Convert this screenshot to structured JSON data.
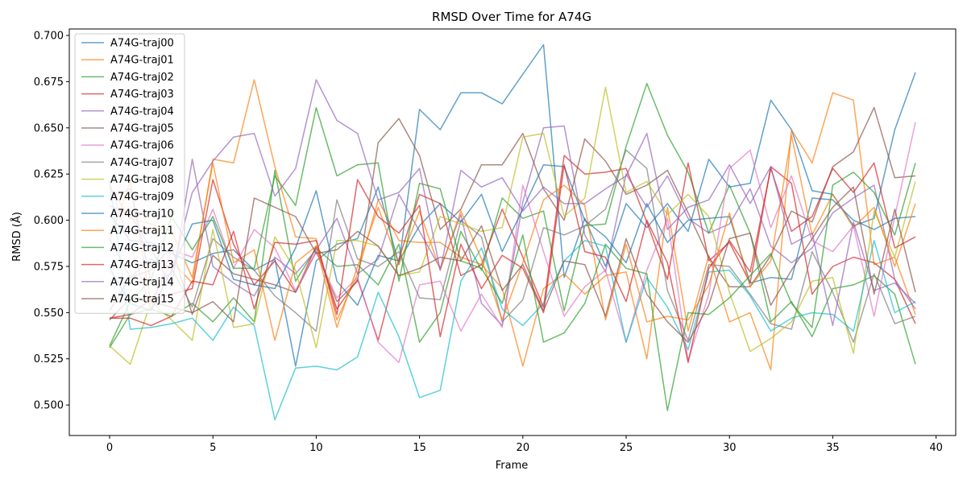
{
  "chart_data": {
    "type": "line",
    "title": "RMSD Over Time for A74G",
    "xlabel": "Frame",
    "ylabel": "RMSD (Å)",
    "xlim": [
      -1.95,
      40.95
    ],
    "ylim": [
      0.4835,
      0.7035
    ],
    "xticks": [
      0,
      5,
      10,
      15,
      20,
      25,
      30,
      35,
      40
    ],
    "yticks": [
      0.5,
      0.525,
      0.55,
      0.575,
      0.6,
      0.625,
      0.65,
      0.675,
      0.7
    ],
    "xtick_labels": [
      "0",
      "5",
      "10",
      "15",
      "20",
      "25",
      "30",
      "35",
      "40"
    ],
    "ytick_labels": [
      "0.500",
      "0.525",
      "0.550",
      "0.575",
      "0.600",
      "0.625",
      "0.650",
      "0.675",
      "0.700"
    ],
    "legend_position": "upper-left",
    "grid": false,
    "x": [
      0,
      1,
      2,
      3,
      4,
      5,
      6,
      7,
      8,
      9,
      10,
      11,
      12,
      13,
      14,
      15,
      16,
      17,
      18,
      19,
      20,
      21,
      22,
      23,
      24,
      25,
      26,
      27,
      28,
      29,
      30,
      31,
      32,
      33,
      34,
      35,
      36,
      37,
      38,
      39
    ],
    "series": [
      {
        "name": "A74G-traj00",
        "color": "#1f77b4",
        "values": [
          0.603,
          0.589,
          0.588,
          0.582,
          0.577,
          0.582,
          0.584,
          0.573,
          0.579,
          0.521,
          0.578,
          0.587,
          0.59,
          0.618,
          0.576,
          0.66,
          0.649,
          0.669,
          0.669,
          0.663,
          0.679,
          0.695,
          0.569,
          0.601,
          0.575,
          0.609,
          0.596,
          0.609,
          0.594,
          0.633,
          0.618,
          0.62,
          0.665,
          0.649,
          0.616,
          0.614,
          0.597,
          0.601,
          0.649,
          0.68
        ]
      },
      {
        "name": "A74G-traj01",
        "color": "#ff7f0e",
        "values": [
          0.589,
          0.621,
          0.555,
          0.578,
          0.566,
          0.633,
          0.631,
          0.676,
          0.629,
          0.591,
          0.59,
          0.546,
          0.571,
          0.611,
          0.589,
          0.588,
          0.588,
          0.58,
          0.576,
          0.563,
          0.521,
          0.563,
          0.571,
          0.56,
          0.57,
          0.572,
          0.525,
          0.607,
          0.54,
          0.581,
          0.545,
          0.55,
          0.519,
          0.649,
          0.631,
          0.669,
          0.665,
          0.576,
          0.58,
          0.549
        ]
      },
      {
        "name": "A74G-traj02",
        "color": "#2ca02c",
        "values": [
          0.531,
          0.549,
          0.552,
          0.548,
          0.555,
          0.545,
          0.558,
          0.545,
          0.627,
          0.567,
          0.585,
          0.575,
          0.576,
          0.565,
          0.587,
          0.534,
          0.55,
          0.594,
          0.573,
          0.612,
          0.601,
          0.605,
          0.551,
          0.597,
          0.598,
          0.64,
          0.674,
          0.646,
          0.626,
          0.593,
          0.619,
          0.593,
          0.545,
          0.556,
          0.537,
          0.563,
          0.565,
          0.57,
          0.56,
          0.522
        ]
      },
      {
        "name": "A74G-traj03",
        "color": "#d62728",
        "values": [
          0.547,
          0.549,
          0.557,
          0.56,
          0.563,
          0.622,
          0.587,
          0.565,
          0.578,
          0.561,
          0.586,
          0.552,
          0.568,
          0.535,
          0.579,
          0.614,
          0.609,
          0.57,
          0.576,
          0.606,
          0.58,
          0.553,
          0.635,
          0.625,
          0.626,
          0.628,
          0.599,
          0.568,
          0.631,
          0.578,
          0.588,
          0.566,
          0.629,
          0.62,
          0.56,
          0.575,
          0.58,
          0.577,
          0.568,
          0.544
        ]
      },
      {
        "name": "A74G-traj04",
        "color": "#9467bd",
        "values": [
          0.608,
          0.603,
          0.585,
          0.564,
          0.633,
          0.575,
          0.566,
          0.559,
          0.58,
          0.571,
          0.584,
          0.601,
          0.571,
          0.579,
          0.614,
          0.594,
          0.574,
          0.603,
          0.555,
          0.543,
          0.61,
          0.65,
          0.651,
          0.592,
          0.572,
          0.625,
          0.607,
          0.624,
          0.601,
          0.593,
          0.598,
          0.617,
          0.586,
          0.577,
          0.585,
          0.604,
          0.612,
          0.619,
          0.568,
          0.552
        ]
      },
      {
        "name": "A74G-traj05",
        "color": "#8c564b",
        "values": [
          0.551,
          0.569,
          0.573,
          0.586,
          0.549,
          0.581,
          0.571,
          0.568,
          0.565,
          0.561,
          0.583,
          0.556,
          0.567,
          0.642,
          0.655,
          0.635,
          0.595,
          0.606,
          0.63,
          0.63,
          0.647,
          0.617,
          0.6,
          0.644,
          0.632,
          0.614,
          0.619,
          0.627,
          0.604,
          0.58,
          0.564,
          0.564,
          0.581,
          0.605,
          0.599,
          0.629,
          0.637,
          0.661,
          0.623,
          0.624
        ]
      },
      {
        "name": "A74G-traj06",
        "color": "#e377c2",
        "values": [
          0.62,
          0.587,
          0.552,
          0.584,
          0.58,
          0.606,
          0.574,
          0.595,
          0.585,
          0.562,
          0.583,
          0.558,
          0.569,
          0.534,
          0.523,
          0.565,
          0.567,
          0.54,
          0.56,
          0.542,
          0.619,
          0.583,
          0.548,
          0.564,
          0.573,
          0.534,
          0.573,
          0.601,
          0.524,
          0.56,
          0.628,
          0.638,
          0.596,
          0.624,
          0.589,
          0.583,
          0.597,
          0.548,
          0.602,
          0.653
        ]
      },
      {
        "name": "A74G-traj07",
        "color": "#7f7f7f",
        "values": [
          0.59,
          0.569,
          0.579,
          0.574,
          0.553,
          0.59,
          0.58,
          0.573,
          0.559,
          0.55,
          0.54,
          0.611,
          0.579,
          0.575,
          0.583,
          0.558,
          0.557,
          0.6,
          0.591,
          0.545,
          0.557,
          0.596,
          0.592,
          0.597,
          0.606,
          0.638,
          0.628,
          0.562,
          0.535,
          0.576,
          0.575,
          0.56,
          0.544,
          0.541,
          0.583,
          0.561,
          0.534,
          0.571,
          0.544,
          0.548
        ]
      },
      {
        "name": "A74G-traj08",
        "color": "#bcbd22",
        "values": [
          0.532,
          0.522,
          0.556,
          0.546,
          0.535,
          0.595,
          0.542,
          0.544,
          0.591,
          0.573,
          0.531,
          0.589,
          0.589,
          0.586,
          0.57,
          0.572,
          0.602,
          0.598,
          0.594,
          0.596,
          0.645,
          0.647,
          0.602,
          0.612,
          0.672,
          0.615,
          0.621,
          0.603,
          0.614,
          0.602,
          0.561,
          0.529,
          0.536,
          0.545,
          0.567,
          0.569,
          0.528,
          0.605,
          0.58,
          0.621
        ]
      },
      {
        "name": "A74G-traj09",
        "color": "#17becf",
        "values": [
          0.621,
          0.541,
          0.542,
          0.544,
          0.547,
          0.535,
          0.553,
          0.543,
          0.492,
          0.52,
          0.521,
          0.519,
          0.526,
          0.561,
          0.537,
          0.504,
          0.508,
          0.567,
          0.585,
          0.552,
          0.543,
          0.555,
          0.578,
          0.589,
          0.586,
          0.534,
          0.569,
          0.553,
          0.53,
          0.572,
          0.573,
          0.559,
          0.54,
          0.547,
          0.55,
          0.549,
          0.54,
          0.589,
          0.55,
          0.556
        ]
      },
      {
        "name": "A74G-traj10",
        "color": "#1f77b4",
        "values": [
          0.574,
          0.555,
          0.551,
          0.573,
          0.598,
          0.6,
          0.568,
          0.565,
          0.563,
          0.585,
          0.616,
          0.567,
          0.554,
          0.581,
          0.578,
          0.597,
          0.609,
          0.599,
          0.614,
          0.583,
          0.606,
          0.63,
          0.629,
          0.6,
          0.591,
          0.577,
          0.609,
          0.588,
          0.6,
          0.601,
          0.602,
          0.566,
          0.569,
          0.568,
          0.612,
          0.611,
          0.6,
          0.595,
          0.601,
          0.602
        ]
      },
      {
        "name": "A74G-traj11",
        "color": "#ff7f0e",
        "values": [
          0.618,
          0.601,
          0.598,
          0.594,
          0.569,
          0.631,
          0.577,
          0.584,
          0.535,
          0.577,
          0.586,
          0.542,
          0.575,
          0.607,
          0.576,
          0.605,
          0.573,
          0.605,
          0.579,
          0.546,
          0.577,
          0.611,
          0.619,
          0.608,
          0.546,
          0.587,
          0.545,
          0.548,
          0.546,
          0.565,
          0.604,
          0.564,
          0.578,
          0.646,
          0.592,
          0.614,
          0.596,
          0.607,
          0.575,
          0.609
        ]
      },
      {
        "name": "A74G-traj12",
        "color": "#2ca02c",
        "values": [
          0.532,
          0.556,
          0.568,
          0.602,
          0.584,
          0.602,
          0.574,
          0.574,
          0.624,
          0.608,
          0.661,
          0.624,
          0.63,
          0.631,
          0.567,
          0.62,
          0.617,
          0.578,
          0.574,
          0.555,
          0.592,
          0.534,
          0.539,
          0.555,
          0.587,
          0.574,
          0.571,
          0.497,
          0.55,
          0.549,
          0.558,
          0.57,
          0.582,
          0.555,
          0.542,
          0.619,
          0.626,
          0.615,
          0.592,
          0.631
        ]
      },
      {
        "name": "A74G-traj13",
        "color": "#d62728",
        "values": [
          0.547,
          0.547,
          0.543,
          0.548,
          0.567,
          0.565,
          0.594,
          0.552,
          0.588,
          0.587,
          0.589,
          0.549,
          0.622,
          0.602,
          0.593,
          0.608,
          0.537,
          0.587,
          0.563,
          0.581,
          0.574,
          0.55,
          0.63,
          0.583,
          0.58,
          0.556,
          0.6,
          0.577,
          0.523,
          0.574,
          0.589,
          0.572,
          0.628,
          0.594,
          0.602,
          0.628,
          0.615,
          0.631,
          0.585,
          0.591
        ]
      },
      {
        "name": "A74G-traj14",
        "color": "#9467bd",
        "values": [
          0.612,
          0.617,
          0.567,
          0.571,
          0.615,
          0.632,
          0.645,
          0.647,
          0.613,
          0.628,
          0.676,
          0.654,
          0.647,
          0.611,
          0.615,
          0.628,
          0.573,
          0.627,
          0.618,
          0.623,
          0.605,
          0.618,
          0.609,
          0.609,
          0.617,
          0.624,
          0.647,
          0.595,
          0.607,
          0.611,
          0.63,
          0.609,
          0.629,
          0.587,
          0.593,
          0.543,
          0.599,
          0.562,
          0.566,
          0.555
        ]
      },
      {
        "name": "A74G-traj15",
        "color": "#8c564b",
        "values": [
          0.546,
          0.558,
          0.556,
          0.553,
          0.55,
          0.556,
          0.545,
          0.612,
          0.607,
          0.602,
          0.582,
          0.584,
          0.594,
          0.586,
          0.57,
          0.574,
          0.58,
          0.578,
          0.597,
          0.562,
          0.576,
          0.551,
          0.578,
          0.576,
          0.548,
          0.59,
          0.56,
          0.545,
          0.534,
          0.554,
          0.59,
          0.593,
          0.554,
          0.573,
          0.59,
          0.607,
          0.618,
          0.56,
          0.606,
          0.561
        ]
      }
    ]
  }
}
